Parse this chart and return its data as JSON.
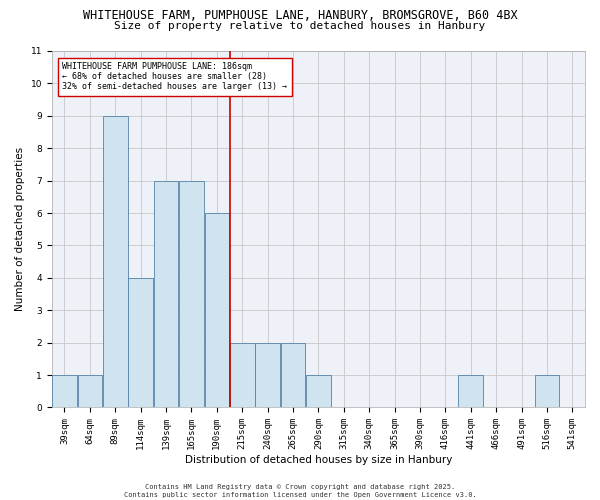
{
  "title_line1": "WHITEHOUSE FARM, PUMPHOUSE LANE, HANBURY, BROMSGROVE, B60 4BX",
  "title_line2": "Size of property relative to detached houses in Hanbury",
  "xlabel": "Distribution of detached houses by size in Hanbury",
  "ylabel": "Number of detached properties",
  "categories": [
    "39sqm",
    "64sqm",
    "89sqm",
    "114sqm",
    "139sqm",
    "165sqm",
    "190sqm",
    "215sqm",
    "240sqm",
    "265sqm",
    "290sqm",
    "315sqm",
    "340sqm",
    "365sqm",
    "390sqm",
    "416sqm",
    "441sqm",
    "466sqm",
    "491sqm",
    "516sqm",
    "541sqm"
  ],
  "values": [
    1,
    1,
    9,
    4,
    7,
    7,
    6,
    2,
    2,
    2,
    1,
    0,
    0,
    0,
    0,
    0,
    1,
    0,
    0,
    1,
    0
  ],
  "bar_color": "#d0e4f0",
  "bar_edge_color": "#5580a8",
  "vline_index": 6,
  "vline_color": "#cc0000",
  "annotation_text": "WHITEHOUSE FARM PUMPHOUSE LANE: 186sqm\n← 68% of detached houses are smaller (28)\n32% of semi-detached houses are larger (13) →",
  "annotation_box_color": "#ffffff",
  "annotation_box_edge": "#cc0000",
  "ylim": [
    0,
    11
  ],
  "yticks": [
    0,
    1,
    2,
    3,
    4,
    5,
    6,
    7,
    8,
    9,
    10,
    11
  ],
  "footer": "Contains HM Land Registry data © Crown copyright and database right 2025.\nContains public sector information licensed under the Open Government Licence v3.0.",
  "grid_color": "#c8c8c8",
  "bg_color": "#eef2f8",
  "title_fontsize": 8.5,
  "subtitle_fontsize": 8,
  "axis_label_fontsize": 7.5,
  "tick_fontsize": 6.5,
  "annotation_fontsize": 6,
  "footer_fontsize": 5
}
